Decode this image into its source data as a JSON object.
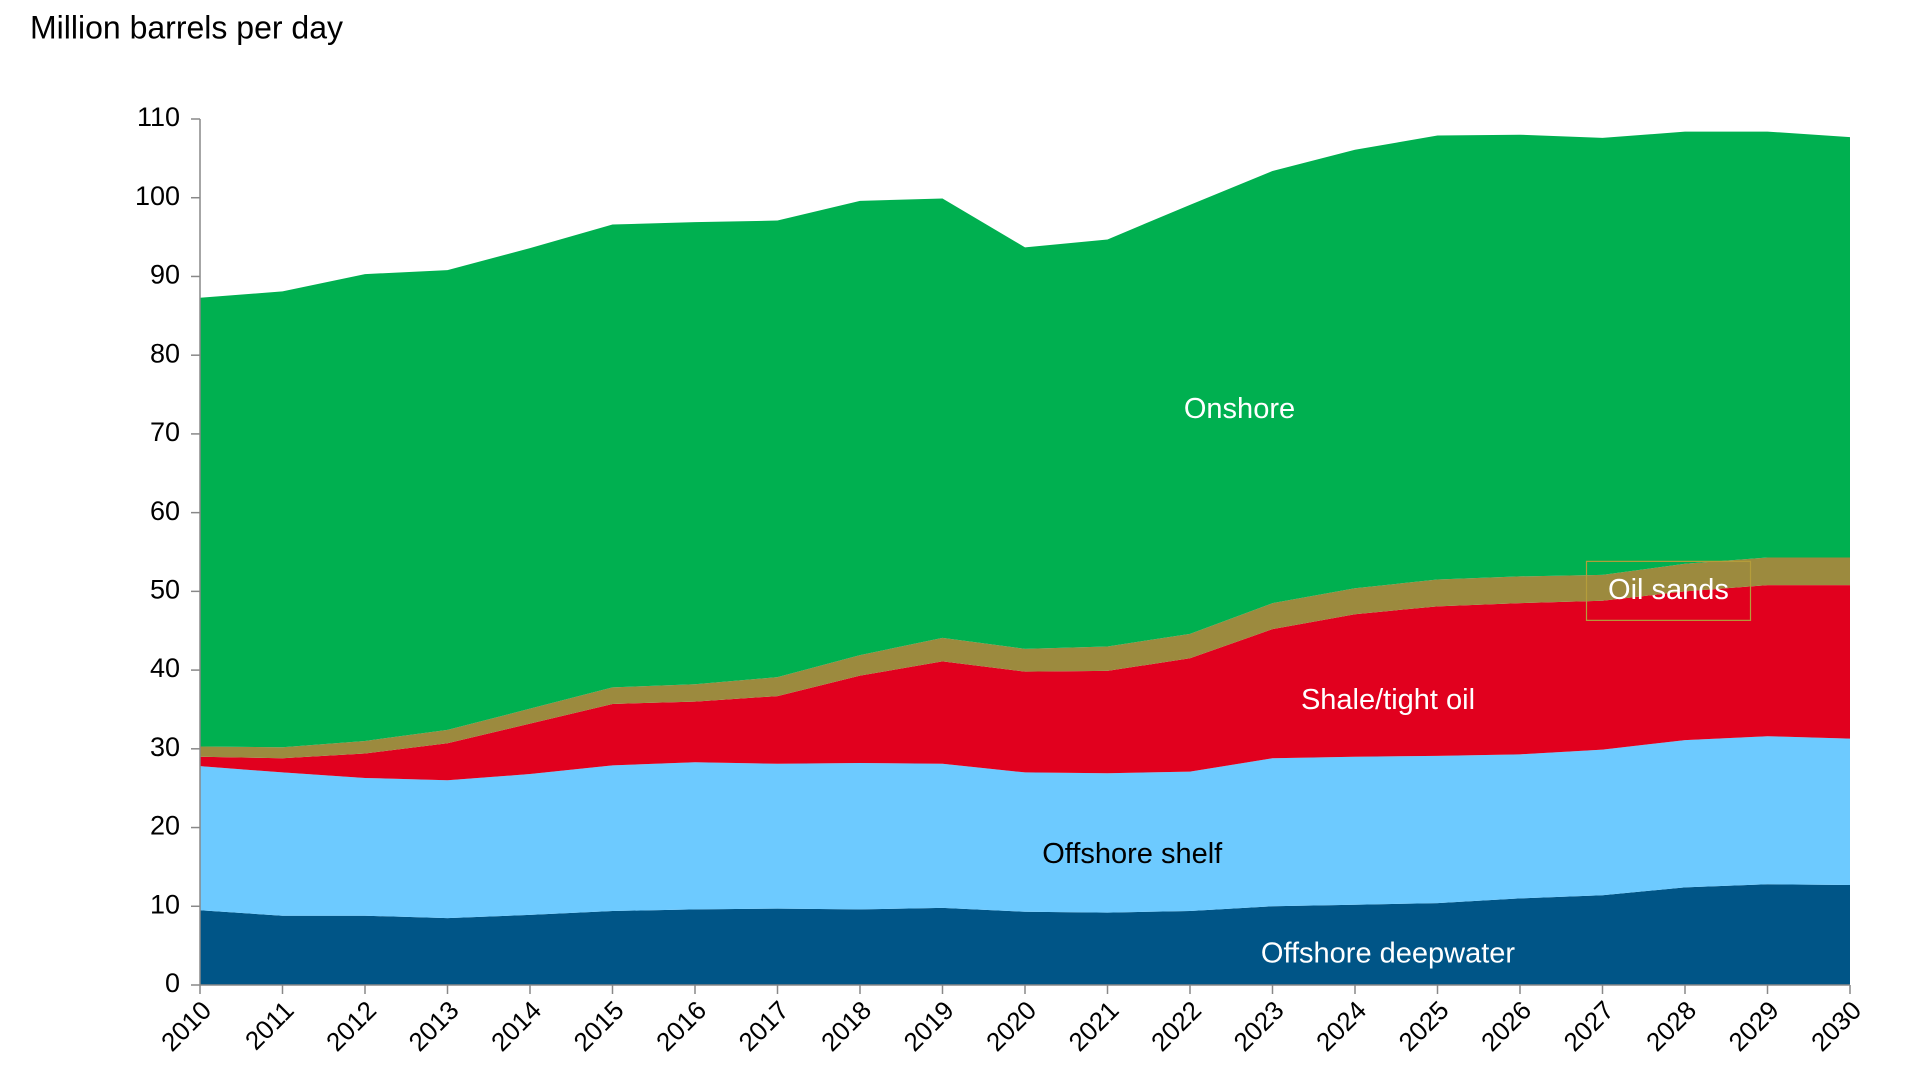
{
  "chart_data": {
    "type": "stacked-area",
    "title": "Million barrels per day",
    "categories": [
      "2010",
      "2011",
      "2012",
      "2013",
      "2014",
      "2015",
      "2016",
      "2017",
      "2018",
      "2019",
      "2020",
      "2021",
      "2022",
      "2023",
      "2024",
      "2025",
      "2026",
      "2027",
      "2028",
      "2029",
      "2030"
    ],
    "series": [
      {
        "name": "Offshore deepwater",
        "color": "#005587",
        "values": [
          9.5,
          8.8,
          8.8,
          8.5,
          8.9,
          9.4,
          9.6,
          9.7,
          9.6,
          9.8,
          9.3,
          9.2,
          9.4,
          10.0,
          10.2,
          10.4,
          11.0,
          11.4,
          12.4,
          12.8,
          12.7
        ]
      },
      {
        "name": "Offshore shelf",
        "color": "#6dcaff",
        "values": [
          18.3,
          18.2,
          17.5,
          17.5,
          17.9,
          18.5,
          18.7,
          18.4,
          18.6,
          18.3,
          17.7,
          17.7,
          17.7,
          18.8,
          18.8,
          18.7,
          18.3,
          18.5,
          18.7,
          18.8,
          18.6
        ]
      },
      {
        "name": "Shale/tight oil",
        "color": "#e1001e",
        "values": [
          1.2,
          1.8,
          3.1,
          4.7,
          6.4,
          7.8,
          7.7,
          8.6,
          11.1,
          13.0,
          12.8,
          13.0,
          14.4,
          16.4,
          18.1,
          19.0,
          19.2,
          18.9,
          18.9,
          19.2,
          19.5
        ]
      },
      {
        "name": "Oil sands",
        "color": "#9c8a3e",
        "values": [
          1.3,
          1.4,
          1.6,
          1.7,
          1.9,
          2.1,
          2.2,
          2.4,
          2.6,
          3.0,
          2.9,
          3.1,
          3.1,
          3.3,
          3.3,
          3.4,
          3.4,
          3.3,
          3.5,
          3.5,
          3.5
        ]
      },
      {
        "name": "Onshore",
        "color": "#00b050",
        "values": [
          57.0,
          57.9,
          59.3,
          58.4,
          58.5,
          58.8,
          58.7,
          58.0,
          57.7,
          55.8,
          51.0,
          51.7,
          54.5,
          54.9,
          55.7,
          56.4,
          56.1,
          55.5,
          54.9,
          54.1,
          53.4
        ]
      }
    ],
    "ylim": [
      0,
      110
    ],
    "yticks": [
      0,
      10,
      20,
      30,
      40,
      50,
      60,
      70,
      80,
      90,
      100,
      110
    ]
  }
}
